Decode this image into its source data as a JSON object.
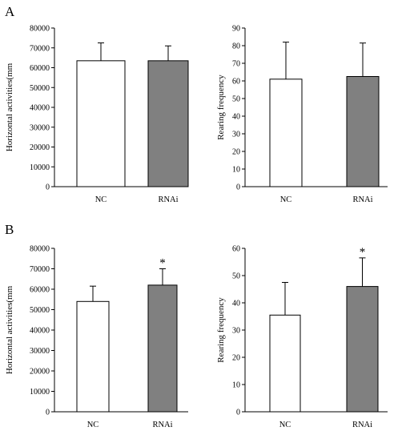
{
  "panels": [
    {
      "letter": "A",
      "charts": [
        {
          "type": "bar",
          "title": "",
          "xlabel": "",
          "ylabel": "Horizontal activities(mm",
          "categories": [
            "NC",
            "RNAi"
          ],
          "values": [
            63500,
            63500
          ],
          "errors": [
            9000,
            7500
          ],
          "ylim": [
            0,
            80000
          ],
          "ytick_step": 10000,
          "bar_colors": [
            "#ffffff",
            "#808080"
          ],
          "significance": [
            "",
            ""
          ],
          "grid": false
        },
        {
          "type": "bar",
          "title": "",
          "xlabel": "",
          "ylabel": "Rearing frequency",
          "categories": [
            "NC",
            "RNAi"
          ],
          "values": [
            61,
            62.5
          ],
          "errors": [
            21,
            19
          ],
          "ylim": [
            0,
            90
          ],
          "ytick_step": 10,
          "bar_colors": [
            "#ffffff",
            "#808080"
          ],
          "significance": [
            "",
            ""
          ],
          "grid": false
        }
      ]
    },
    {
      "letter": "B",
      "charts": [
        {
          "type": "bar",
          "title": "",
          "xlabel": "",
          "ylabel": "Horizontal activities(mm",
          "categories": [
            "NC",
            "RNAi"
          ],
          "values": [
            54000,
            62000
          ],
          "errors": [
            7500,
            8000
          ],
          "ylim": [
            0,
            80000
          ],
          "ytick_step": 10000,
          "bar_colors": [
            "#ffffff",
            "#808080"
          ],
          "significance": [
            "",
            "*"
          ],
          "grid": false
        },
        {
          "type": "bar",
          "title": "",
          "xlabel": "",
          "ylabel": "Rearing frequency",
          "categories": [
            "NC",
            "RNAi"
          ],
          "values": [
            35.5,
            46
          ],
          "errors": [
            12,
            10.5
          ],
          "ylim": [
            0,
            60
          ],
          "ytick_step": 10,
          "bar_colors": [
            "#ffffff",
            "#808080"
          ],
          "significance": [
            "",
            "*"
          ],
          "grid": false
        }
      ]
    }
  ]
}
